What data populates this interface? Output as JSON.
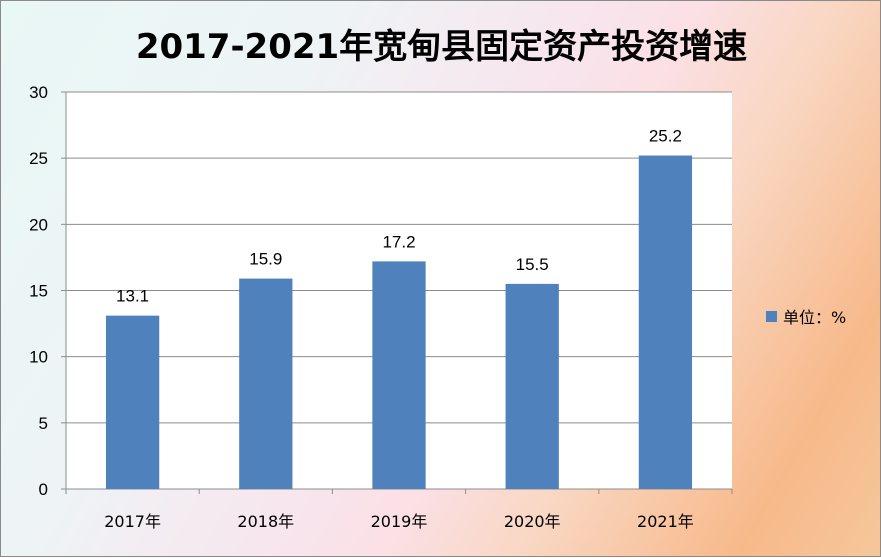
{
  "chart_data": {
    "type": "bar",
    "title": "2017-2021年宽甸县固定资产投资增速",
    "categories": [
      "2017年",
      "2018年",
      "2019年",
      "2020年",
      "2021年"
    ],
    "series": [
      {
        "name": "单位：%",
        "values": [
          13.1,
          15.9,
          17.2,
          15.5,
          25.2
        ],
        "color": "#4f81bd"
      }
    ],
    "data_labels": [
      "13.1",
      "15.9",
      "17.2",
      "15.5",
      "25.2"
    ],
    "ylim": [
      0,
      30
    ],
    "yticks": [
      0,
      5,
      10,
      15,
      20,
      25,
      30
    ],
    "grid": true,
    "legend_position": "right",
    "plot_background": "#ffffff",
    "gridline_color": "#8c8c8c"
  }
}
